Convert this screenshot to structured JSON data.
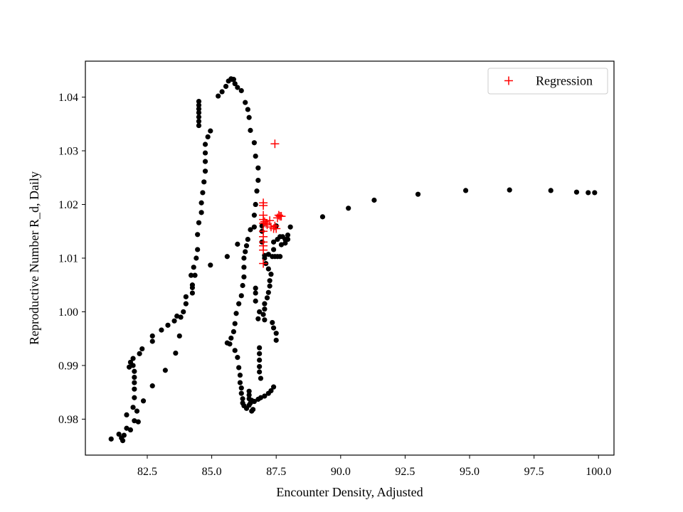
{
  "chart_data": {
    "type": "scatter",
    "title": "",
    "xlabel": "Encounter Density, Adjusted",
    "ylabel": "Reproductive Number R_d, Daily",
    "xlim": [
      80.1,
      100.6
    ],
    "ylim": [
      0.9733,
      1.0467
    ],
    "xticks": [
      82.5,
      85.0,
      87.5,
      90.0,
      92.5,
      95.0,
      97.5,
      100.0
    ],
    "xtick_labels": [
      "82.5",
      "85.0",
      "87.5",
      "90.0",
      "92.5",
      "95.0",
      "97.5",
      "100.0"
    ],
    "yticks": [
      0.98,
      0.99,
      1.0,
      1.01,
      1.02,
      1.03,
      1.04
    ],
    "ytick_labels": [
      "0.98",
      "0.99",
      "1.00",
      "1.01",
      "1.02",
      "1.03",
      "1.04"
    ],
    "grid": false,
    "legend": {
      "position": "top-right",
      "entries": [
        "Regression"
      ]
    },
    "series": [
      {
        "marker": "dot",
        "color": "#000000",
        "points": [
          [
            81.1,
            0.9763
          ],
          [
            81.4,
            0.9772
          ],
          [
            81.5,
            0.9765
          ],
          [
            81.55,
            0.976
          ],
          [
            81.6,
            0.977
          ],
          [
            81.7,
            0.9783
          ],
          [
            81.7,
            0.9808
          ],
          [
            81.85,
            0.978
          ],
          [
            82.0,
            0.9797
          ],
          [
            82.1,
            0.9815
          ],
          [
            82.15,
            0.9795
          ],
          [
            81.95,
            0.9822
          ],
          [
            82.0,
            0.984
          ],
          [
            82.0,
            0.9856
          ],
          [
            82.0,
            0.9868
          ],
          [
            82.0,
            0.9878
          ],
          [
            82.0,
            0.9889
          ],
          [
            81.95,
            0.99
          ],
          [
            81.85,
            0.9906
          ],
          [
            81.8,
            0.9897
          ],
          [
            81.95,
            0.9913
          ],
          [
            82.2,
            0.9922
          ],
          [
            82.3,
            0.9931
          ],
          [
            82.35,
            0.9834
          ],
          [
            82.7,
            0.9862
          ],
          [
            82.7,
            0.9945
          ],
          [
            82.7,
            0.9955
          ],
          [
            83.05,
            0.9966
          ],
          [
            83.2,
            0.9891
          ],
          [
            83.3,
            0.9975
          ],
          [
            83.55,
            0.9983
          ],
          [
            83.6,
            0.9923
          ],
          [
            83.65,
            0.9992
          ],
          [
            83.75,
            0.9955
          ],
          [
            83.8,
            0.999
          ],
          [
            83.9,
            1.0
          ],
          [
            84.0,
            1.0015
          ],
          [
            84.0,
            1.0028
          ],
          [
            84.25,
            1.0035
          ],
          [
            84.25,
            1.0045
          ],
          [
            84.25,
            1.005
          ],
          [
            84.2,
            1.0068
          ],
          [
            84.35,
            1.0068
          ],
          [
            84.3,
            1.0083
          ],
          [
            84.4,
            1.01
          ],
          [
            84.45,
            1.0116
          ],
          [
            84.45,
            1.0144
          ],
          [
            84.5,
            1.0166
          ],
          [
            84.6,
            1.0185
          ],
          [
            84.6,
            1.0203
          ],
          [
            84.65,
            1.0222
          ],
          [
            84.7,
            1.0242
          ],
          [
            84.75,
            1.0262
          ],
          [
            84.75,
            1.028
          ],
          [
            84.75,
            1.0296
          ],
          [
            84.75,
            1.0312
          ],
          [
            84.85,
            1.0326
          ],
          [
            84.95,
            1.0337
          ],
          [
            84.5,
            1.0347
          ],
          [
            84.5,
            1.0355
          ],
          [
            84.5,
            1.0363
          ],
          [
            84.5,
            1.0371
          ],
          [
            84.5,
            1.0378
          ],
          [
            84.5,
            1.0385
          ],
          [
            84.5,
            1.0392
          ],
          [
            84.95,
            1.0087
          ],
          [
            85.25,
            1.0402
          ],
          [
            85.4,
            1.041
          ],
          [
            85.55,
            1.042
          ],
          [
            85.65,
            1.043
          ],
          [
            85.75,
            1.0434
          ],
          [
            85.8,
            1.0433
          ],
          [
            85.85,
            1.0433
          ],
          [
            85.9,
            1.0425
          ],
          [
            86.0,
            1.0418
          ],
          [
            86.15,
            1.0412
          ],
          [
            86.3,
            1.039
          ],
          [
            86.4,
            1.0377
          ],
          [
            86.45,
            1.0362
          ],
          [
            86.5,
            1.0338
          ],
          [
            86.65,
            1.0315
          ],
          [
            86.7,
            1.029
          ],
          [
            86.8,
            1.0268
          ],
          [
            86.8,
            1.0245
          ],
          [
            86.75,
            1.0225
          ],
          [
            86.7,
            1.02
          ],
          [
            86.65,
            1.018
          ],
          [
            86.65,
            1.0158
          ],
          [
            86.5,
            1.0153
          ],
          [
            86.4,
            1.0135
          ],
          [
            86.35,
            1.0123
          ],
          [
            86.3,
            1.0112
          ],
          [
            86.25,
            1.01
          ],
          [
            86.25,
            1.0083
          ],
          [
            86.25,
            1.0065
          ],
          [
            86.2,
            1.0049
          ],
          [
            86.15,
            1.003
          ],
          [
            86.05,
            1.0015
          ],
          [
            85.95,
            0.9997
          ],
          [
            85.9,
            0.9978
          ],
          [
            85.85,
            0.9963
          ],
          [
            85.75,
            0.9951
          ],
          [
            85.7,
            0.994
          ],
          [
            85.6,
            0.9942
          ],
          [
            85.9,
            0.9928
          ],
          [
            86.0,
            0.9915
          ],
          [
            86.05,
            0.9896
          ],
          [
            86.1,
            0.9882
          ],
          [
            86.1,
            0.9868
          ],
          [
            86.15,
            0.9858
          ],
          [
            86.15,
            0.9848
          ],
          [
            86.2,
            0.9838
          ],
          [
            86.2,
            0.983
          ],
          [
            86.25,
            0.9825
          ],
          [
            86.35,
            0.982
          ],
          [
            86.45,
            0.9826
          ],
          [
            86.5,
            0.983
          ],
          [
            86.55,
            0.9815
          ],
          [
            86.6,
            0.9818
          ],
          [
            86.45,
            0.9852
          ],
          [
            86.45,
            0.9845
          ],
          [
            86.45,
            0.9838
          ],
          [
            86.55,
            0.9835
          ],
          [
            86.65,
            0.9833
          ],
          [
            86.8,
            0.9837
          ],
          [
            86.9,
            0.984
          ],
          [
            87.05,
            0.9843
          ],
          [
            87.2,
            0.9848
          ],
          [
            87.3,
            0.9853
          ],
          [
            87.4,
            0.986
          ],
          [
            86.9,
            0.9876
          ],
          [
            86.85,
            0.9888
          ],
          [
            86.85,
            0.9898
          ],
          [
            86.85,
            0.991
          ],
          [
            86.85,
            0.9922
          ],
          [
            86.85,
            0.9933
          ],
          [
            86.8,
            0.9987
          ],
          [
            86.85,
            1.0
          ],
          [
            86.7,
            1.002
          ],
          [
            86.7,
            1.0035
          ],
          [
            86.7,
            1.0044
          ],
          [
            85.6,
            1.0103
          ],
          [
            86.0,
            1.0126
          ],
          [
            87.05,
            0.9985
          ],
          [
            87.0,
            0.9995
          ],
          [
            87.05,
            1.0005
          ],
          [
            87.05,
            1.0015
          ],
          [
            87.15,
            1.0026
          ],
          [
            87.2,
            1.0036
          ],
          [
            87.25,
            1.0048
          ],
          [
            87.25,
            1.0058
          ],
          [
            87.3,
            1.007
          ],
          [
            87.2,
            1.008
          ],
          [
            87.1,
            1.009
          ],
          [
            87.05,
            1.01
          ],
          [
            87.05,
            1.0105
          ],
          [
            87.2,
            1.0107
          ],
          [
            87.35,
            1.0103
          ],
          [
            87.45,
            1.0103
          ],
          [
            87.55,
            1.0103
          ],
          [
            87.65,
            1.0103
          ],
          [
            87.4,
            1.0116
          ],
          [
            87.4,
            1.013
          ],
          [
            87.55,
            1.0135
          ],
          [
            87.65,
            1.014
          ],
          [
            87.75,
            1.014
          ],
          [
            87.85,
            1.0135
          ],
          [
            87.85,
            1.0128
          ],
          [
            87.95,
            1.0135
          ],
          [
            87.95,
            1.0143
          ],
          [
            87.7,
            1.0125
          ],
          [
            87.5,
            1.016
          ],
          [
            88.05,
            1.0158
          ],
          [
            87.35,
            0.998
          ],
          [
            87.4,
            0.997
          ],
          [
            87.5,
            0.996
          ],
          [
            87.5,
            0.9947
          ],
          [
            86.95,
            1.013
          ],
          [
            86.95,
            1.015
          ],
          [
            86.95,
            1.016
          ],
          [
            89.3,
            1.0177
          ],
          [
            90.3,
            1.0193
          ],
          [
            91.3,
            1.0208
          ],
          [
            93.0,
            1.0219
          ],
          [
            94.85,
            1.0226
          ],
          [
            96.55,
            1.0227
          ],
          [
            98.15,
            1.0226
          ],
          [
            99.15,
            1.0223
          ],
          [
            99.6,
            1.0222
          ],
          [
            99.85,
            1.0222
          ]
        ]
      },
      {
        "name": "Regression",
        "marker": "plus",
        "color": "#ff0000",
        "points": [
          [
            87.45,
            1.0313
          ],
          [
            87.0,
            1.0203
          ],
          [
            87.0,
            1.0198
          ],
          [
            87.0,
            1.018
          ],
          [
            87.0,
            1.0172
          ],
          [
            87.0,
            1.0165
          ],
          [
            87.05,
            1.0168
          ],
          [
            87.1,
            1.0165
          ],
          [
            87.15,
            1.0162
          ],
          [
            87.25,
            1.017
          ],
          [
            87.3,
            1.0158
          ],
          [
            87.4,
            1.0155
          ],
          [
            87.45,
            1.016
          ],
          [
            87.5,
            1.0155
          ],
          [
            87.55,
            1.0175
          ],
          [
            87.6,
            1.018
          ],
          [
            87.65,
            1.0178
          ],
          [
            87.7,
            1.0178
          ],
          [
            87.0,
            1.015
          ],
          [
            87.0,
            1.014
          ],
          [
            87.0,
            1.013
          ],
          [
            87.0,
            1.0123
          ],
          [
            87.0,
            1.0115
          ],
          [
            87.0,
            1.009
          ]
        ]
      }
    ]
  }
}
